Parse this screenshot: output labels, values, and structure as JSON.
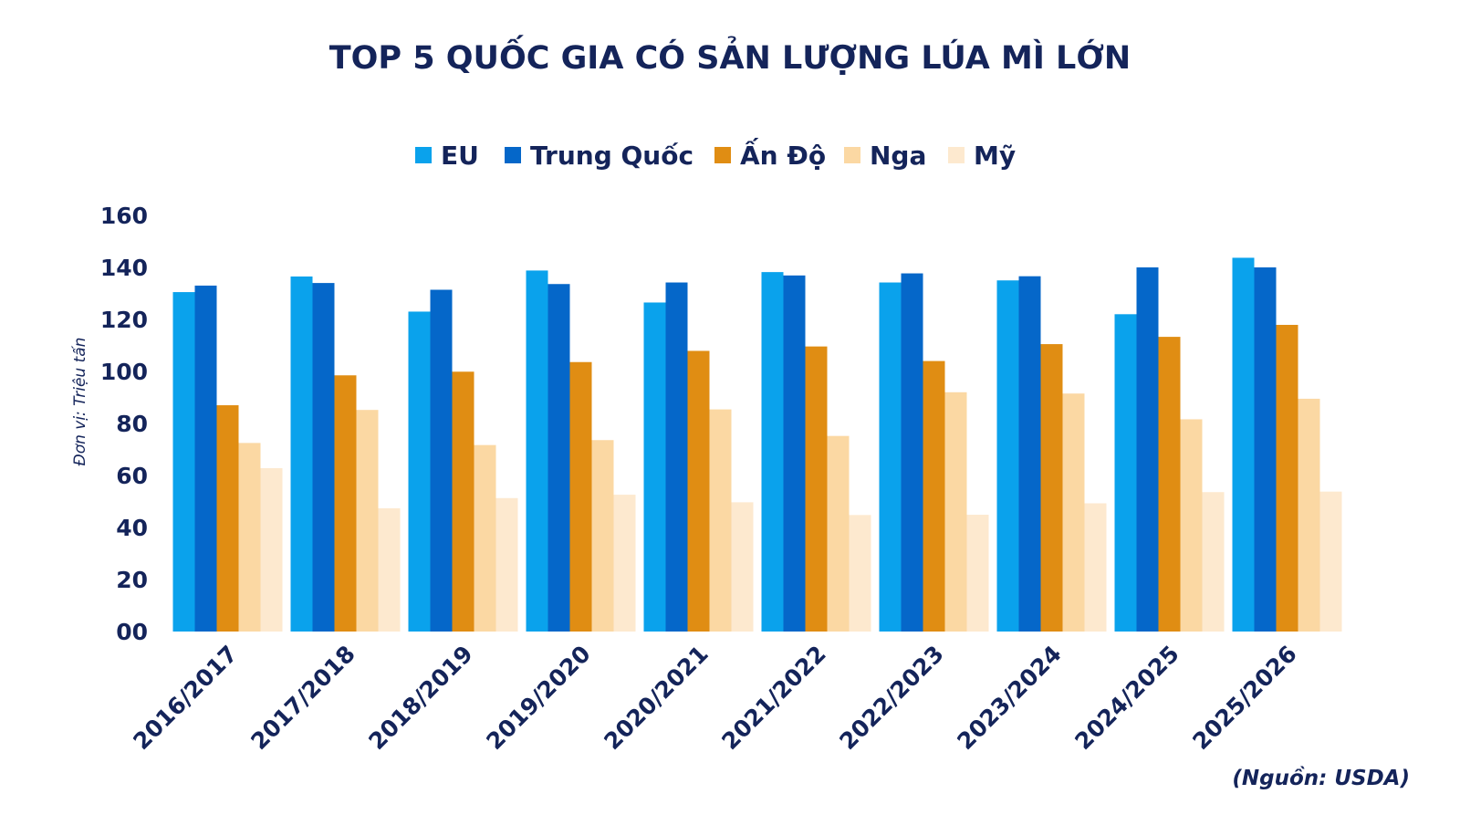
{
  "chart_data": {
    "type": "bar",
    "title": "TOP 5 QUỐC GIA CÓ SẢN LƯỢNG LÚA MÌ LỚN",
    "ylabel": "Đơn vị: Triệu tấn",
    "xlabel": "",
    "source": "(Nguồn: USDA)",
    "ylim": [
      0,
      160
    ],
    "yticks": [
      "00",
      "20",
      "40",
      "60",
      "80",
      "100",
      "120",
      "140",
      "160"
    ],
    "ytick_values": [
      0,
      20,
      40,
      60,
      80,
      100,
      120,
      140,
      160
    ],
    "legend_position": "top-center",
    "grid": false,
    "categories": [
      "2016/2017",
      "2017/2018",
      "2018/2019",
      "2019/2020",
      "2020/2021",
      "2021/2022",
      "2022/2023",
      "2023/2024",
      "2024/2025",
      "2025/2026"
    ],
    "series": [
      {
        "name": "EU",
        "color": "#0aa2ec",
        "values": [
          130.5,
          136.5,
          123,
          138.8,
          126.5,
          138.2,
          134.2,
          135,
          122,
          143.7
        ]
      },
      {
        "name": "Trung Quốc",
        "color": "#0567c9",
        "values": [
          133,
          134,
          131.4,
          133.6,
          134.2,
          136.9,
          137.7,
          136.6,
          140,
          140
        ]
      },
      {
        "name": "Ấn Độ",
        "color": "#e08d13",
        "values": [
          87,
          98.5,
          99.9,
          103.6,
          107.9,
          109.6,
          104,
          110.5,
          113.3,
          117.9
        ]
      },
      {
        "name": "Nga",
        "color": "#fbd8a3",
        "values": [
          72.5,
          85.2,
          71.7,
          73.6,
          85.4,
          75.2,
          92,
          91.5,
          81.6,
          89.5
        ]
      },
      {
        "name": "Mỹ",
        "color": "#fde9cf",
        "values": [
          62.8,
          47.4,
          51.3,
          52.6,
          49.7,
          44.8,
          44.9,
          49.3,
          53.6,
          53.8
        ]
      }
    ]
  }
}
